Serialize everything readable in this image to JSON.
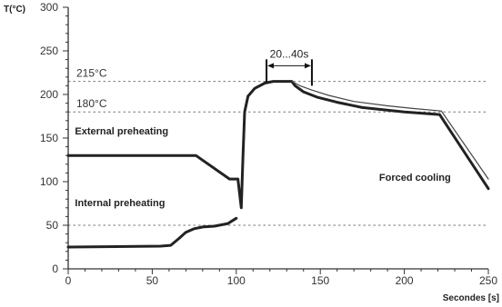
{
  "chart_data": {
    "type": "line",
    "xlabel": "Secondes [s]",
    "ylabel": "T(°C)",
    "xlim": [
      0,
      250
    ],
    "ylim": [
      0,
      300
    ],
    "x_ticks": [
      0,
      50,
      100,
      150,
      200,
      250
    ],
    "y_ticks": [
      0,
      50,
      100,
      150,
      200,
      250,
      300
    ],
    "grid": false,
    "reference_lines": [
      {
        "label": "215°C",
        "value": 215
      },
      {
        "label": "180°C",
        "value": 180
      },
      {
        "label": "",
        "value": 50
      }
    ],
    "interval": {
      "label": "20...40s",
      "x_start": 118,
      "x_end": 145,
      "y": 233
    },
    "annotations": [
      {
        "text": "External preheating",
        "x": 4,
        "y": 154
      },
      {
        "text": "Internal preheating",
        "x": 4,
        "y": 72
      },
      {
        "text": "Forced cooling",
        "x": 185,
        "y": 101
      }
    ],
    "series": [
      {
        "color": "#222222",
        "style": "thick",
        "points": [
          [
            0,
            130
          ],
          [
            76,
            130
          ],
          [
            96,
            103
          ],
          [
            101,
            103
          ],
          [
            103,
            70
          ],
          [
            104,
            130
          ],
          [
            105,
            180
          ],
          [
            107,
            198
          ],
          [
            111,
            207
          ],
          [
            117,
            213
          ],
          [
            122,
            215
          ],
          [
            133,
            215
          ],
          [
            135,
            210
          ],
          [
            140,
            203
          ],
          [
            148,
            197
          ],
          [
            160,
            191
          ],
          [
            175,
            185
          ],
          [
            200,
            180
          ],
          [
            221,
            177
          ],
          [
            250,
            92
          ]
        ]
      },
      {
        "color": "#222222",
        "style": "thick",
        "points": [
          [
            0,
            25
          ],
          [
            55,
            26
          ],
          [
            61,
            27
          ],
          [
            66,
            35
          ],
          [
            70,
            42
          ],
          [
            75,
            46
          ],
          [
            80,
            48
          ],
          [
            87,
            49
          ],
          [
            95,
            52
          ],
          [
            100,
            58
          ]
        ]
      },
      {
        "color": "#444444",
        "style": "thin",
        "points": [
          [
            133,
            215
          ],
          [
            138,
            210
          ],
          [
            145,
            205
          ],
          [
            155,
            199
          ],
          [
            170,
            192
          ],
          [
            190,
            187
          ],
          [
            205,
            184
          ],
          [
            222,
            181
          ],
          [
            250,
            103
          ]
        ]
      }
    ]
  }
}
